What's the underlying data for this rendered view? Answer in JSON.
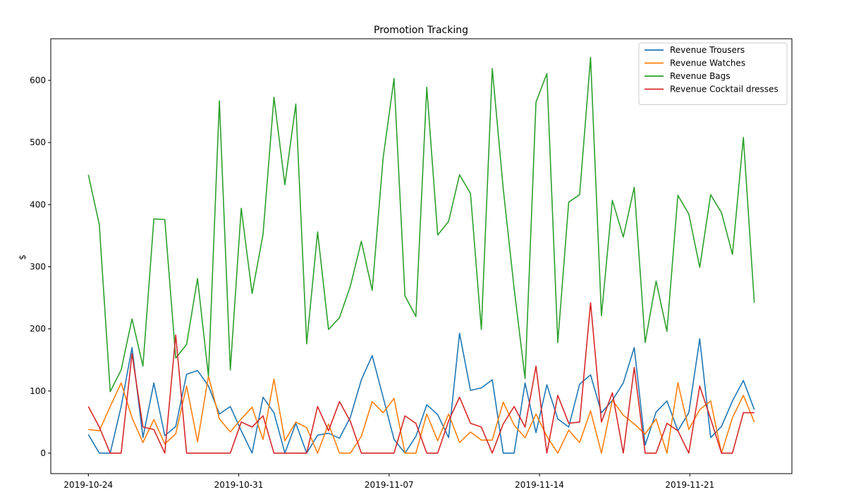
{
  "chart_data": {
    "type": "line",
    "title": "Promotion Tracking",
    "xlabel": "",
    "ylabel": "$",
    "x_start": "2019-10-24",
    "x_end": "2019-11-24",
    "x_ticks": [
      "2019-10-24",
      "2019-10-31",
      "2019-11-07",
      "2019-11-14",
      "2019-11-21"
    ],
    "y_ticks": [
      0,
      100,
      200,
      300,
      400,
      500,
      600
    ],
    "ylim": [
      -33,
      667
    ],
    "xlim": [
      "2019-10-22 06:00",
      "2019-11-25 18:00"
    ],
    "legend_position": "top-right",
    "series": [
      {
        "name": "Revenue Trousers",
        "color": "#1f77b4",
        "values": [
          30,
          0,
          0,
          75,
          170,
          25,
          113,
          28,
          43,
          127,
          133,
          108,
          63,
          75,
          36,
          0,
          90,
          65,
          0,
          48,
          0,
          29,
          32,
          24,
          58,
          118,
          157,
          90,
          22,
          0,
          27,
          78,
          62,
          25,
          193,
          101,
          105,
          118,
          0,
          0,
          113,
          33,
          110,
          55,
          42,
          111,
          126,
          65,
          85,
          113,
          170,
          13,
          66,
          84,
          36,
          65,
          184,
          25,
          43,
          84,
          117,
          70
        ]
      },
      {
        "name": "Revenue Watches",
        "color": "#ff7f0e",
        "values": [
          38,
          36,
          75,
          113,
          57,
          17,
          54,
          15,
          31,
          108,
          18,
          124,
          55,
          34,
          55,
          74,
          22,
          119,
          20,
          50,
          41,
          0,
          47,
          0,
          0,
          27,
          83,
          65,
          88,
          0,
          0,
          63,
          20,
          63,
          17,
          34,
          21,
          21,
          82,
          45,
          25,
          63,
          27,
          0,
          37,
          17,
          68,
          0,
          85,
          61,
          47,
          31,
          55,
          0,
          113,
          38,
          70,
          84,
          0,
          57,
          93,
          50
        ]
      },
      {
        "name": "Revenue Bags",
        "color": "#2ca02c",
        "values": [
          448,
          368,
          99,
          134,
          216,
          140,
          377,
          376,
          153,
          175,
          281,
          124,
          567,
          134,
          394,
          257,
          352,
          573,
          432,
          562,
          176,
          356,
          199,
          218,
          269,
          341,
          262,
          475,
          603,
          253,
          220,
          589,
          351,
          373,
          448,
          418,
          199,
          619,
          426,
          265,
          120,
          565,
          611,
          178,
          404,
          416,
          637,
          221,
          407,
          348,
          428,
          178,
          277,
          196,
          415,
          385,
          299,
          416,
          387,
          320,
          508,
          242
        ]
      },
      {
        "name": "Revenue Cocktail dresses",
        "color": "#d62728",
        "values": [
          75,
          42,
          0,
          0,
          160,
          42,
          38,
          0,
          190,
          0,
          0,
          0,
          0,
          0,
          50,
          42,
          60,
          0,
          0,
          0,
          0,
          75,
          36,
          83,
          51,
          0,
          0,
          0,
          0,
          60,
          48,
          0,
          0,
          52,
          90,
          48,
          42,
          0,
          47,
          75,
          42,
          140,
          0,
          93,
          48,
          50,
          242,
          50,
          97,
          0,
          138,
          0,
          0,
          48,
          36,
          0,
          108,
          55,
          0,
          0,
          65,
          65
        ]
      }
    ]
  }
}
